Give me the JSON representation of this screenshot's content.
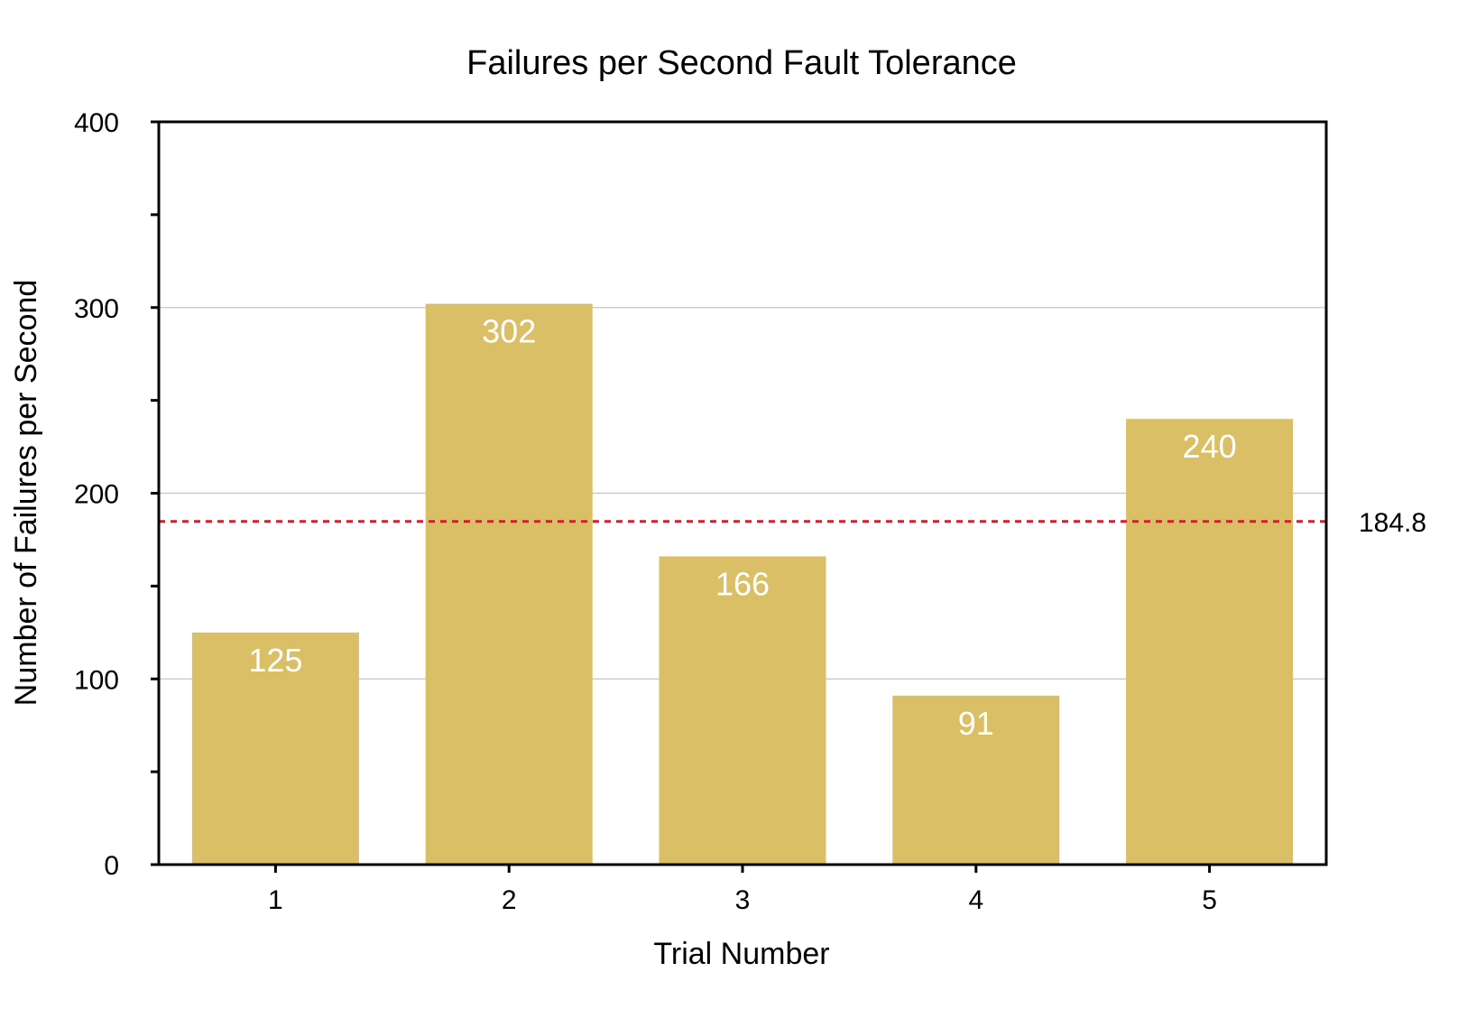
{
  "chart_data": {
    "type": "bar",
    "title": "Failures per Second Fault Tolerance",
    "xlabel": "Trial Number",
    "ylabel": "Number of Failures per Second",
    "categories": [
      "1",
      "2",
      "3",
      "4",
      "5"
    ],
    "values": [
      125,
      302,
      166,
      91,
      240
    ],
    "data_labels": [
      "125",
      "302",
      "166",
      "91",
      "240"
    ],
    "ylim": [
      0,
      400
    ],
    "yticks": [
      0,
      100,
      200,
      300,
      400
    ],
    "ytick_labels": [
      "0",
      "100",
      "200",
      "300",
      "400"
    ],
    "grid": true,
    "reference_line": {
      "value": 184.8,
      "label": "184.8",
      "style": "dashed",
      "color": "#d0202e"
    },
    "bar_color": "#dbbf66"
  }
}
